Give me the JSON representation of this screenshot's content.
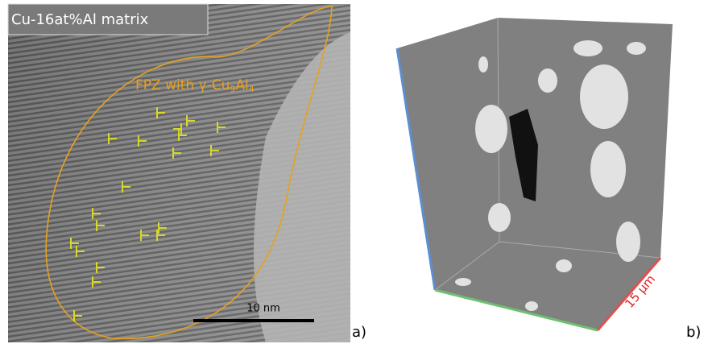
{
  "panel_a": {
    "matrix_label": "Cu-16at%Al matrix",
    "fpz_label": {
      "text": "FPZ with γ-Cu",
      "sub1": "9",
      "mid": "Al",
      "sub2": "4"
    },
    "scale_bar": "10 nm",
    "panel_label": "a)"
  },
  "panel_b": {
    "scale_label": "15 µm",
    "panel_label": "b)"
  }
}
